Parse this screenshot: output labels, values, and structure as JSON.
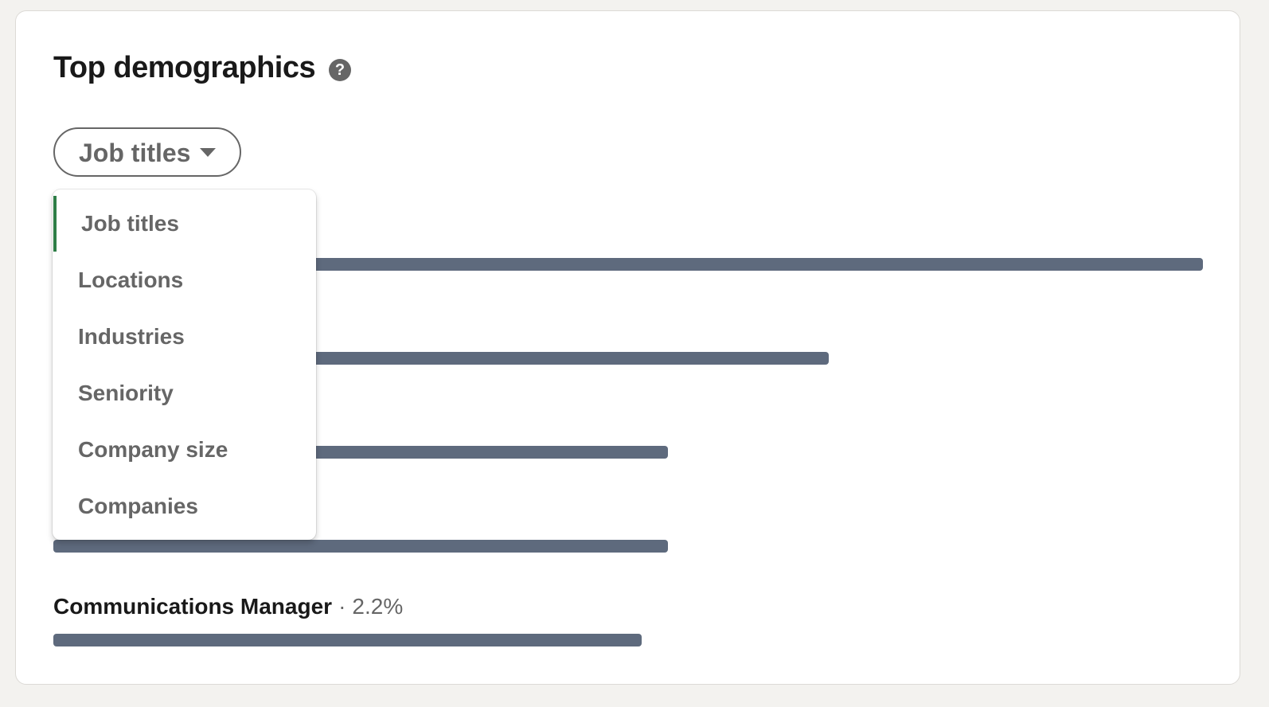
{
  "header": {
    "title": "Top demographics"
  },
  "filter": {
    "selected": "Job titles",
    "options": [
      "Job titles",
      "Locations",
      "Industries",
      "Seniority",
      "Company size",
      "Companies"
    ]
  },
  "bars": {
    "labels": [
      null,
      null,
      null,
      null,
      "Communications Manager"
    ],
    "separator": "·",
    "values": [
      4.3,
      2.9,
      2.3,
      2.3,
      2.2
    ],
    "value_labels": [
      null,
      null,
      null,
      null,
      "2.2%"
    ],
    "color": "#5e6a7d"
  }
}
